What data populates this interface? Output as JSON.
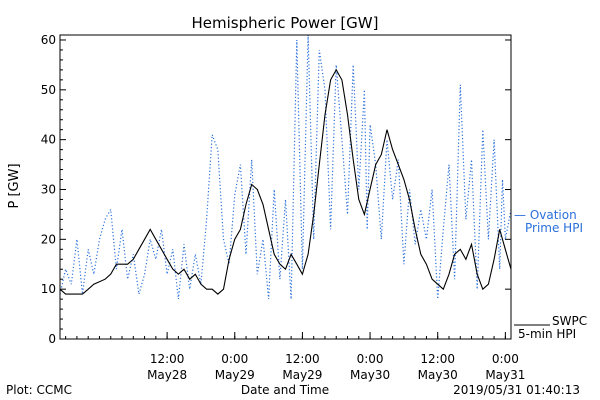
{
  "chart_data": {
    "type": "line",
    "title": "Hemispheric Power [GW]",
    "ylabel": "P [GW]",
    "xlabel": "Date and Time",
    "ylim": [
      0,
      61
    ],
    "xlim": [
      "2019-05-27T17:00",
      "2019-05-31T01:00"
    ],
    "yticks": [
      0,
      10,
      20,
      30,
      40,
      50,
      60
    ],
    "xticks": [
      {
        "x": "2019-05-28T12:00",
        "time": "12:00",
        "date": "May28"
      },
      {
        "x": "2019-05-29T00:00",
        "time": "0:00",
        "date": "May29"
      },
      {
        "x": "2019-05-29T12:00",
        "time": "12:00",
        "date": "May29"
      },
      {
        "x": "2019-05-30T00:00",
        "time": "0:00",
        "date": "May30"
      },
      {
        "x": "2019-05-30T12:00",
        "time": "12:00",
        "date": "May30"
      },
      {
        "x": "2019-05-31T00:00",
        "time": "0:00",
        "date": "May31"
      }
    ],
    "series": [
      {
        "name": "SWPC 5-min HPI",
        "color": "#000000",
        "style": "solid",
        "points": [
          [
            "2019-05-27T17:00",
            10
          ],
          [
            "2019-05-27T18:00",
            9
          ],
          [
            "2019-05-27T19:00",
            9
          ],
          [
            "2019-05-27T21:00",
            9
          ],
          [
            "2019-05-27T22:00",
            10
          ],
          [
            "2019-05-27T23:00",
            11
          ],
          [
            "2019-05-28T01:00",
            12
          ],
          [
            "2019-05-28T02:00",
            13
          ],
          [
            "2019-05-28T03:00",
            15
          ],
          [
            "2019-05-28T05:00",
            15
          ],
          [
            "2019-05-28T06:00",
            16
          ],
          [
            "2019-05-28T07:00",
            18
          ],
          [
            "2019-05-28T08:00",
            20
          ],
          [
            "2019-05-28T09:00",
            22
          ],
          [
            "2019-05-28T10:00",
            20
          ],
          [
            "2019-05-28T11:00",
            18
          ],
          [
            "2019-05-28T12:00",
            16
          ],
          [
            "2019-05-28T13:00",
            14
          ],
          [
            "2019-05-28T14:00",
            13
          ],
          [
            "2019-05-28T15:00",
            14
          ],
          [
            "2019-05-28T16:00",
            12
          ],
          [
            "2019-05-28T17:00",
            13
          ],
          [
            "2019-05-28T18:00",
            11
          ],
          [
            "2019-05-28T19:00",
            10
          ],
          [
            "2019-05-28T20:00",
            10
          ],
          [
            "2019-05-28T21:00",
            9
          ],
          [
            "2019-05-28T22:00",
            10
          ],
          [
            "2019-05-28T23:00",
            16
          ],
          [
            "2019-05-28T23:59",
            20
          ],
          [
            "2019-05-29T01:00",
            22
          ],
          [
            "2019-05-29T02:00",
            27
          ],
          [
            "2019-05-29T03:00",
            31
          ],
          [
            "2019-05-29T04:00",
            30
          ],
          [
            "2019-05-29T05:00",
            27
          ],
          [
            "2019-05-29T06:00",
            22
          ],
          [
            "2019-05-29T07:00",
            17
          ],
          [
            "2019-05-29T08:00",
            15
          ],
          [
            "2019-05-29T09:00",
            14
          ],
          [
            "2019-05-29T10:00",
            17
          ],
          [
            "2019-05-29T11:00",
            15
          ],
          [
            "2019-05-29T12:00",
            13
          ],
          [
            "2019-05-29T13:00",
            17
          ],
          [
            "2019-05-29T14:00",
            25
          ],
          [
            "2019-05-29T15:00",
            35
          ],
          [
            "2019-05-29T16:00",
            45
          ],
          [
            "2019-05-29T17:00",
            52
          ],
          [
            "2019-05-29T18:00",
            54
          ],
          [
            "2019-05-29T19:00",
            52
          ],
          [
            "2019-05-29T20:00",
            45
          ],
          [
            "2019-05-29T21:00",
            36
          ],
          [
            "2019-05-29T22:00",
            28
          ],
          [
            "2019-05-29T23:00",
            25
          ],
          [
            "2019-05-29T23:59",
            30
          ],
          [
            "2019-05-30T01:00",
            35
          ],
          [
            "2019-05-30T02:00",
            37
          ],
          [
            "2019-05-30T03:00",
            42
          ],
          [
            "2019-05-30T04:00",
            38
          ],
          [
            "2019-05-30T05:00",
            35
          ],
          [
            "2019-05-30T06:00",
            32
          ],
          [
            "2019-05-30T07:00",
            28
          ],
          [
            "2019-05-30T08:00",
            22
          ],
          [
            "2019-05-30T09:00",
            17
          ],
          [
            "2019-05-30T10:00",
            15
          ],
          [
            "2019-05-30T11:00",
            12
          ],
          [
            "2019-05-30T12:00",
            11
          ],
          [
            "2019-05-30T13:00",
            10
          ],
          [
            "2019-05-30T14:00",
            13
          ],
          [
            "2019-05-30T15:00",
            17
          ],
          [
            "2019-05-30T16:00",
            18
          ],
          [
            "2019-05-30T17:00",
            16
          ],
          [
            "2019-05-30T18:00",
            19
          ],
          [
            "2019-05-30T19:00",
            13
          ],
          [
            "2019-05-30T20:00",
            10
          ],
          [
            "2019-05-30T21:00",
            11
          ],
          [
            "2019-05-30T22:00",
            16
          ],
          [
            "2019-05-30T23:00",
            22
          ],
          [
            "2019-05-30T23:59",
            18
          ],
          [
            "2019-05-31T01:00",
            14
          ]
        ]
      },
      {
        "name": "Ovation Prime HPI",
        "color": "#2a6fdb",
        "style": "dotted",
        "points": [
          [
            "2019-05-27T17:00",
            9
          ],
          [
            "2019-05-27T18:00",
            14
          ],
          [
            "2019-05-27T19:00",
            11
          ],
          [
            "2019-05-27T20:00",
            20
          ],
          [
            "2019-05-27T21:00",
            9
          ],
          [
            "2019-05-27T22:00",
            18
          ],
          [
            "2019-05-27T23:00",
            13
          ],
          [
            "2019-05-28T00:00",
            20
          ],
          [
            "2019-05-28T01:00",
            24
          ],
          [
            "2019-05-28T02:00",
            26
          ],
          [
            "2019-05-28T03:00",
            14
          ],
          [
            "2019-05-28T04:00",
            22
          ],
          [
            "2019-05-28T05:00",
            12
          ],
          [
            "2019-05-28T06:00",
            17
          ],
          [
            "2019-05-28T07:00",
            9
          ],
          [
            "2019-05-28T08:00",
            13
          ],
          [
            "2019-05-28T09:00",
            20
          ],
          [
            "2019-05-28T10:00",
            16
          ],
          [
            "2019-05-28T11:00",
            22
          ],
          [
            "2019-05-28T12:00",
            13
          ],
          [
            "2019-05-28T13:00",
            18
          ],
          [
            "2019-05-28T14:00",
            8
          ],
          [
            "2019-05-28T15:00",
            19
          ],
          [
            "2019-05-28T16:00",
            10
          ],
          [
            "2019-05-28T17:00",
            17
          ],
          [
            "2019-05-28T18:00",
            11
          ],
          [
            "2019-05-28T19:00",
            24
          ],
          [
            "2019-05-28T20:00",
            41
          ],
          [
            "2019-05-28T21:00",
            38
          ],
          [
            "2019-05-28T22:00",
            20
          ],
          [
            "2019-05-28T23:00",
            15
          ],
          [
            "2019-05-29T00:00",
            29
          ],
          [
            "2019-05-29T01:00",
            35
          ],
          [
            "2019-05-29T02:00",
            17
          ],
          [
            "2019-05-29T03:00",
            36
          ],
          [
            "2019-05-29T04:00",
            13
          ],
          [
            "2019-05-29T05:00",
            20
          ],
          [
            "2019-05-29T06:00",
            8
          ],
          [
            "2019-05-29T07:00",
            30
          ],
          [
            "2019-05-29T08:00",
            12
          ],
          [
            "2019-05-29T09:00",
            28
          ],
          [
            "2019-05-29T10:00",
            8
          ],
          [
            "2019-05-29T11:00",
            60
          ],
          [
            "2019-05-29T12:00",
            14
          ],
          [
            "2019-05-29T13:00",
            61
          ],
          [
            "2019-05-29T14:00",
            20
          ],
          [
            "2019-05-29T15:00",
            58
          ],
          [
            "2019-05-29T16:00",
            50
          ],
          [
            "2019-05-29T17:00",
            22
          ],
          [
            "2019-05-29T18:00",
            55
          ],
          [
            "2019-05-29T19:00",
            40
          ],
          [
            "2019-05-29T20:00",
            25
          ],
          [
            "2019-05-29T21:00",
            55
          ],
          [
            "2019-05-29T22:00",
            30
          ],
          [
            "2019-05-29T23:00",
            50
          ],
          [
            "2019-05-29T23:30",
            22
          ],
          [
            "2019-05-30T00:00",
            43
          ],
          [
            "2019-05-30T01:00",
            35
          ],
          [
            "2019-05-30T02:00",
            20
          ],
          [
            "2019-05-30T03:00",
            40
          ],
          [
            "2019-05-30T04:00",
            28
          ],
          [
            "2019-05-30T05:00",
            36
          ],
          [
            "2019-05-30T06:00",
            15
          ],
          [
            "2019-05-30T07:00",
            30
          ],
          [
            "2019-05-30T08:00",
            19
          ],
          [
            "2019-05-30T09:00",
            26
          ],
          [
            "2019-05-30T10:00",
            20
          ],
          [
            "2019-05-30T11:00",
            30
          ],
          [
            "2019-05-30T12:00",
            8
          ],
          [
            "2019-05-30T13:00",
            22
          ],
          [
            "2019-05-30T14:00",
            35
          ],
          [
            "2019-05-30T15:00",
            12
          ],
          [
            "2019-05-30T16:00",
            51
          ],
          [
            "2019-05-30T17:00",
            24
          ],
          [
            "2019-05-30T18:00",
            36
          ],
          [
            "2019-05-30T19:00",
            10
          ],
          [
            "2019-05-30T20:00",
            42
          ],
          [
            "2019-05-30T21:00",
            20
          ],
          [
            "2019-05-30T22:00",
            40
          ],
          [
            "2019-05-30T23:00",
            14
          ],
          [
            "2019-05-30T23:30",
            32
          ],
          [
            "2019-05-31T00:00",
            20
          ],
          [
            "2019-05-31T01:00",
            26
          ]
        ]
      }
    ]
  },
  "legend": {
    "ovation_line1": "— Ovation",
    "ovation_line2": "Prime HPI",
    "swpc_line1": "SWPC",
    "swpc_line2": "5-min HPI"
  },
  "footer": {
    "plot_credit": "Plot: CCMC",
    "timestamp": "2019/05/31 01:40:13"
  }
}
